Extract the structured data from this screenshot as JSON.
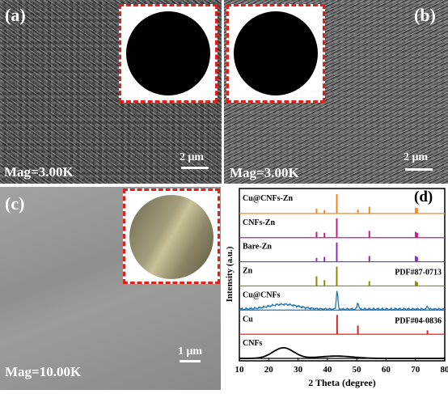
{
  "panel_a": {
    "letter": "(a)",
    "mag": "Mag=3.00K",
    "scale": "2 μm"
  },
  "panel_b": {
    "letter": "(b)",
    "mag": "Mag=3.00K",
    "scale": "2 μm"
  },
  "panel_c": {
    "letter": "(c)",
    "mag": "Mag=10.00K",
    "scale": "1 μm"
  },
  "chart_data": {
    "type": "line",
    "panel_label": "(d)",
    "xlabel": "2 Theta (degree)",
    "ylabel": "Intensity (a.u.)",
    "xlim": [
      10,
      80
    ],
    "xticks": [
      10,
      20,
      30,
      40,
      50,
      60,
      70,
      80
    ],
    "series": [
      {
        "name": "Cu@CNFs-Zn",
        "color": "#f5891f",
        "kind": "sticks",
        "peaks": [
          [
            36.3,
            0.25
          ],
          [
            39.0,
            0.18
          ],
          [
            43.2,
            1.0
          ],
          [
            50.4,
            0.2
          ],
          [
            54.3,
            0.35
          ],
          [
            70.1,
            0.3
          ],
          [
            70.6,
            0.28
          ]
        ]
      },
      {
        "name": "CNFs-Zn",
        "color": "#c51b8a",
        "kind": "sticks",
        "peaks": [
          [
            36.3,
            0.3
          ],
          [
            39.0,
            0.25
          ],
          [
            43.2,
            1.0
          ],
          [
            54.3,
            0.35
          ],
          [
            70.1,
            0.3
          ],
          [
            70.6,
            0.25
          ]
        ]
      },
      {
        "name": "Bare-Zn",
        "color": "#8e2fb8",
        "kind": "sticks",
        "peaks": [
          [
            36.3,
            0.2
          ],
          [
            39.0,
            0.25
          ],
          [
            43.2,
            1.0
          ],
          [
            54.3,
            0.3
          ],
          [
            70.1,
            0.3
          ],
          [
            70.6,
            0.25
          ]
        ]
      },
      {
        "name": "Zn",
        "note": "PDF#87-0713",
        "color": "#8c8c00",
        "kind": "sticks",
        "peaks": [
          [
            36.3,
            0.5
          ],
          [
            39.0,
            0.3
          ],
          [
            43.2,
            1.0
          ],
          [
            54.3,
            0.25
          ],
          [
            70.1,
            0.25
          ],
          [
            70.6,
            0.2
          ]
        ]
      },
      {
        "name": "Cu@CNFs",
        "color": "#1f78b4",
        "kind": "curve",
        "peaks": [
          [
            43.3,
            1.0
          ],
          [
            50.4,
            0.35
          ],
          [
            74.1,
            0.15
          ]
        ]
      },
      {
        "name": "Cu",
        "note": "PDF#04-0836",
        "color": "#e02020",
        "kind": "sticks",
        "peaks": [
          [
            43.3,
            1.0
          ],
          [
            50.4,
            0.45
          ],
          [
            74.1,
            0.2
          ]
        ]
      },
      {
        "name": "CNFs",
        "color": "#000000",
        "kind": "curve",
        "peaks": []
      }
    ]
  }
}
